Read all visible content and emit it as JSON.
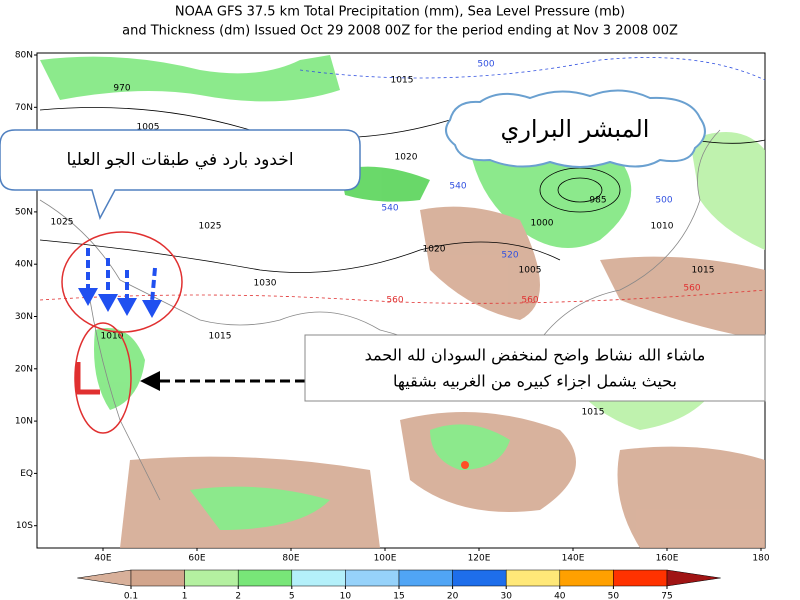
{
  "header": {
    "title_lines": [
      "NOAA GFS 37.5 km Total Precipitation (mm), Sea Level Pressure (mb)",
      "and Thickness (dm)  Issued Oct 29 2008 00Z for the period ending at Nov 3 2008 00Z"
    ]
  },
  "map": {
    "lat_labels": [
      "80N",
      "70N",
      "60N",
      "50N",
      "40N",
      "30N",
      "20N",
      "10N",
      "EQ",
      "10S"
    ],
    "lon_labels": [
      "40E",
      "60E",
      "80E",
      "100E",
      "120E",
      "140E",
      "160E",
      "180"
    ],
    "pressure_labels": {
      "color": "#000000",
      "values": [
        970,
        1005,
        1015,
        1020,
        1025,
        1025,
        1030,
        1015,
        1020,
        1000,
        985,
        1010,
        1005,
        1015,
        1015,
        1010
      ]
    },
    "thickness_cold_labels": {
      "color": "#3050e0",
      "values": [
        500,
        540,
        520,
        540,
        500
      ]
    },
    "thickness_warm_labels": {
      "color": "#e03030",
      "values": [
        560,
        560,
        560
      ]
    }
  },
  "annotations": {
    "cloud": "المبشر البراري",
    "trough": "اخدود بارد  في طبقات الجو العليا",
    "sudan_low": [
      "ماشاء الله نشاط واضح لمنخفض السودان لله الحمد",
      "بحيث يشمل اجزاء كبيره من الغربيه بشقيها"
    ]
  },
  "legend": {
    "ticks": [
      0.1,
      1,
      2,
      5,
      10,
      15,
      20,
      30,
      40,
      50,
      75
    ],
    "colors": [
      "#d8b09a",
      "#d2a58c",
      "#b4f0a0",
      "#78e678",
      "#b4f0fa",
      "#96d2fa",
      "#50a5f5",
      "#1e6eeb",
      "#ffe878",
      "#ffa000",
      "#ff3200",
      "#a01414"
    ]
  }
}
